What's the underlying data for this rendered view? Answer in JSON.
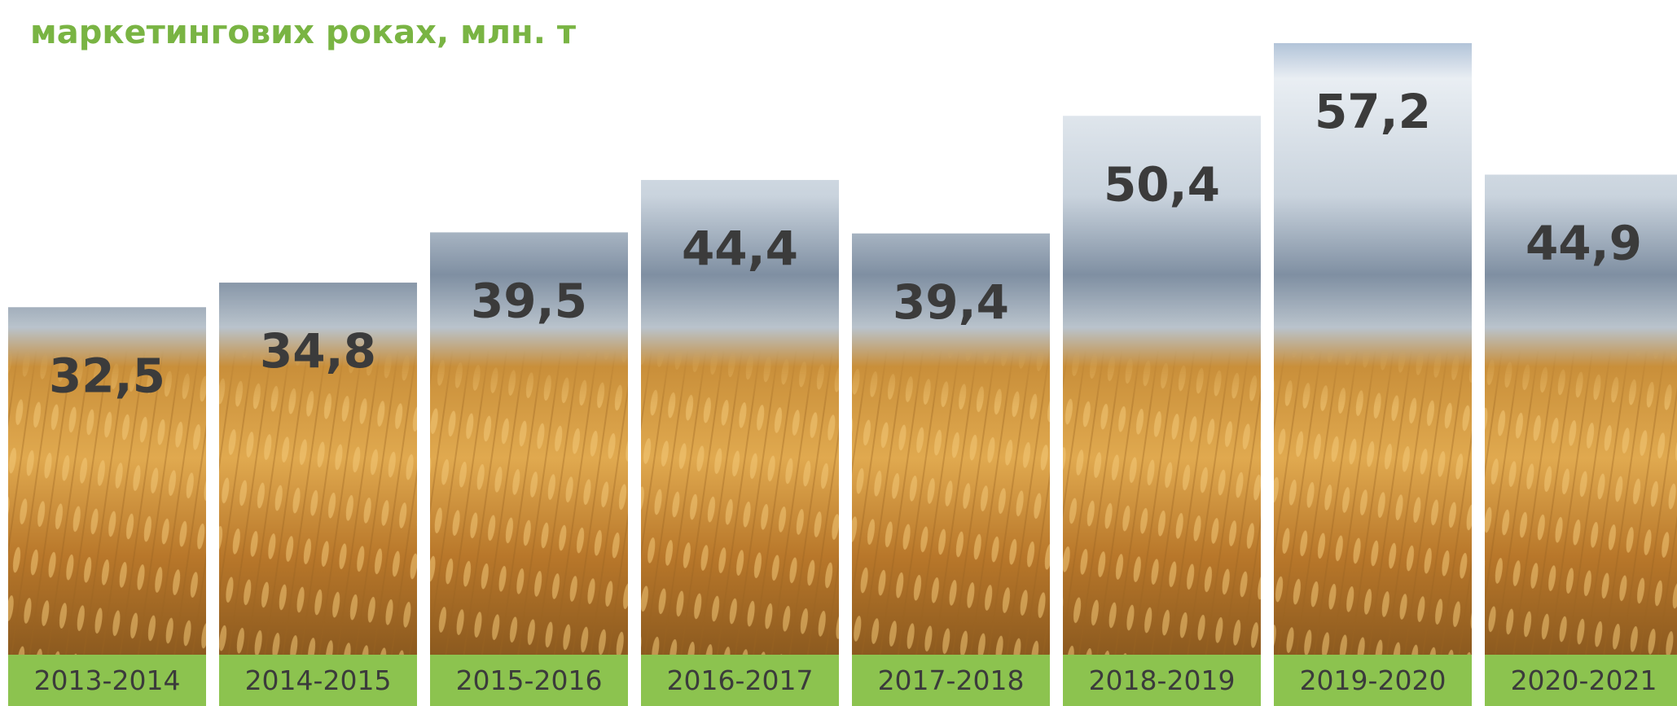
{
  "chart_data": {
    "type": "bar",
    "title": "маркетингових роках, млн. т",
    "categories": [
      "2013-2014",
      "2014-2015",
      "2015-2016",
      "2016-2017",
      "2017-2018",
      "2018-2019",
      "2019-2020",
      "2020-2021"
    ],
    "values": [
      32.5,
      34.8,
      39.5,
      44.4,
      39.4,
      50.4,
      57.2,
      44.9
    ],
    "value_labels": [
      "32,5",
      "34,8",
      "39,5",
      "44,4",
      "39,4",
      "50,4",
      "57,2",
      "44,9"
    ]
  }
}
